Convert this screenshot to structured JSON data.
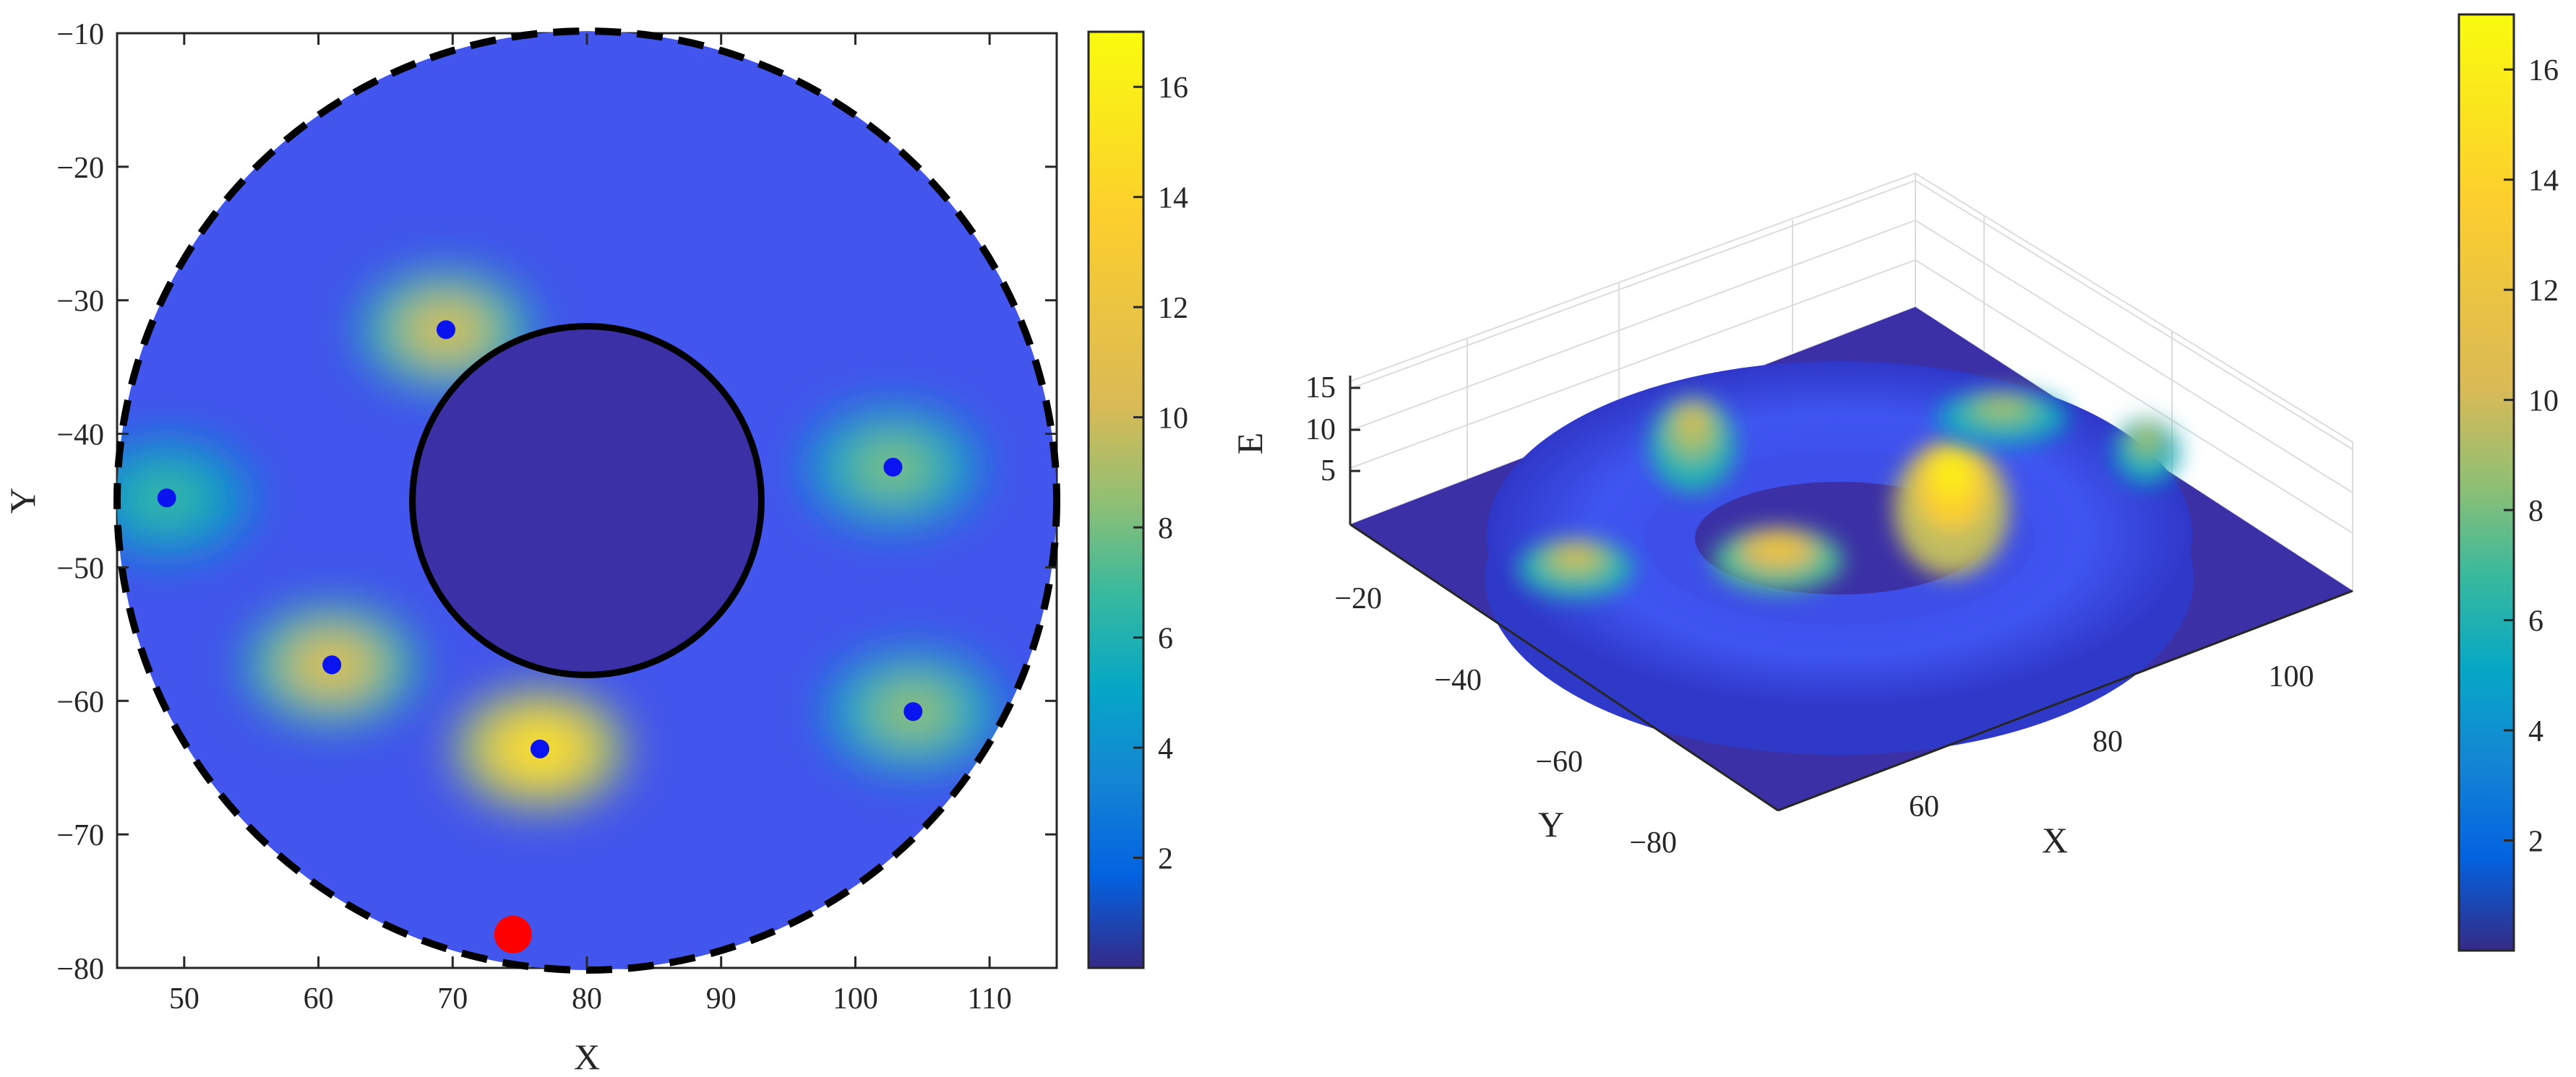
{
  "chart_data": [
    {
      "type": "heatmap",
      "xlabel": "X",
      "ylabel": "Y",
      "xlim": [
        45,
        115
      ],
      "ylim": [
        -80,
        -10
      ],
      "x_ticks": [
        "50",
        "60",
        "70",
        "80",
        "90",
        "100",
        "110"
      ],
      "y_ticks": [
        "-10",
        "-20",
        "-30",
        "-40",
        "-50",
        "-60",
        "-70",
        "-80"
      ],
      "colorbar": {
        "range": [
          0,
          17
        ],
        "ticks": [
          "2",
          "4",
          "6",
          "8",
          "10",
          "12",
          "14",
          "16"
        ],
        "colormap": "parula"
      },
      "outer_boundary": {
        "center": [
          80,
          -45
        ],
        "radius": 35,
        "style": "dashed"
      },
      "inner_obstacle": {
        "center": [
          80,
          -45
        ],
        "radius": 13,
        "style": "solid"
      },
      "blue_points": [
        {
          "x": 69.5,
          "y": -32.2,
          "E": 11
        },
        {
          "x": 48.7,
          "y": -44.8,
          "E": 7
        },
        {
          "x": 102.8,
          "y": -42.5,
          "E": 8.5
        },
        {
          "x": 61,
          "y": -57.3,
          "E": 11.5
        },
        {
          "x": 104.3,
          "y": -60.8,
          "E": 9
        },
        {
          "x": 76.5,
          "y": -63.6,
          "E": 16
        }
      ],
      "red_point": {
        "x": 74.5,
        "y": -77.5
      },
      "colors": {
        "blue_points": "#0a14f0",
        "red_point": "#ff0000",
        "outside": "#ffffff"
      }
    },
    {
      "type": "surface",
      "xlabel": "X",
      "ylabel": "Y",
      "zlabel": "E",
      "x_ticks": [
        "60",
        "80",
        "100"
      ],
      "y_ticks": [
        "-20",
        "-40",
        "-60",
        "-80"
      ],
      "z_ticks": [
        "5",
        "10",
        "15"
      ],
      "colorbar": {
        "range": [
          0,
          17
        ],
        "ticks": [
          "2",
          "4",
          "6",
          "8",
          "10",
          "12",
          "14",
          "16"
        ],
        "colormap": "parula"
      }
    }
  ]
}
